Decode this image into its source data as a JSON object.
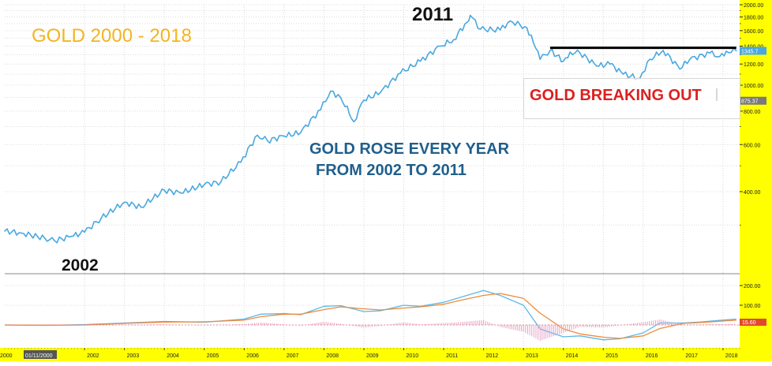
{
  "chart_data": [
    {
      "type": "line",
      "title": "GOLD 2000 - 2018",
      "y_scale": "log",
      "ylim": [
        200,
        2000
      ],
      "xlim": [
        "2000-01",
        "2018-06"
      ],
      "grid": true,
      "x_ticks": [
        "2000",
        "01/11/2000",
        "2002",
        "2003",
        "2004",
        "2005",
        "2006",
        "2007",
        "2008",
        "2009",
        "2010",
        "2011",
        "2012",
        "2013",
        "2014",
        "2015",
        "2016",
        "2017",
        "2018"
      ],
      "y_ticks": [
        400,
        600,
        800,
        1000,
        1200,
        1400,
        1600,
        1800,
        2000
      ],
      "y_tick_labels": [
        "400.00",
        "600.00",
        "800.00",
        "1000.00",
        "1200.00",
        "1400.00",
        "1600.00",
        "1800.00",
        "2000.00"
      ],
      "current_value_label": "1345.7",
      "secondary_value_label": "875.37",
      "line_color": "#4aa8df",
      "axis_color": "#ffff00",
      "x": [
        "2000-01",
        "2000-06",
        "2001-01",
        "2001-04",
        "2001-09",
        "2002-01",
        "2002-06",
        "2003-01",
        "2003-06",
        "2004-01",
        "2004-06",
        "2005-01",
        "2005-06",
        "2005-12",
        "2006-05",
        "2006-08",
        "2007-01",
        "2007-06",
        "2007-12",
        "2008-03",
        "2008-06",
        "2008-10",
        "2009-01",
        "2009-06",
        "2009-12",
        "2010-06",
        "2010-12",
        "2011-04",
        "2011-08",
        "2011-09",
        "2011-12",
        "2012-06",
        "2012-09",
        "2012-12",
        "2013-02",
        "2013-04",
        "2013-06",
        "2013-09",
        "2014-01",
        "2014-03",
        "2014-06",
        "2014-11",
        "2015-03",
        "2015-07",
        "2015-12",
        "2016-03",
        "2016-07",
        "2016-12",
        "2017-03",
        "2017-09",
        "2017-12",
        "2018-02",
        "2018-05"
      ],
      "values": [
        285,
        280,
        268,
        262,
        272,
        282,
        318,
        365,
        350,
        405,
        395,
        425,
        435,
        515,
        650,
        620,
        645,
        665,
        810,
        950,
        900,
        730,
        880,
        940,
        1110,
        1230,
        1400,
        1480,
        1720,
        1825,
        1620,
        1610,
        1740,
        1680,
        1640,
        1440,
        1250,
        1350,
        1230,
        1330,
        1320,
        1180,
        1200,
        1100,
        1060,
        1250,
        1350,
        1150,
        1250,
        1320,
        1280,
        1340,
        1345
      ],
      "annotations": [
        "2011",
        "2002",
        "GOLD ROSE EVERY YEAR",
        "FROM 2002 TO 2011",
        "GOLD BREAKING OUT"
      ],
      "resistance_line": {
        "from": "2013-09",
        "to": "2018-05",
        "value": 1380,
        "color": "#000000"
      }
    },
    {
      "type": "line",
      "indicator": "MACD",
      "y_ticks": [
        100,
        200
      ],
      "y_tick_labels": [
        "100.00",
        "200.00"
      ],
      "last_value_label": "15.60",
      "x": [
        "2000-01",
        "2001-01",
        "2002-01",
        "2003-01",
        "2004-01",
        "2005-01",
        "2006-01",
        "2006-06",
        "2007-01",
        "2007-06",
        "2008-01",
        "2008-06",
        "2009-01",
        "2009-06",
        "2010-01",
        "2010-06",
        "2011-01",
        "2011-06",
        "2012-01",
        "2012-06",
        "2013-01",
        "2013-06",
        "2014-01",
        "2014-06",
        "2015-01",
        "2015-06",
        "2016-01",
        "2016-06",
        "2017-01",
        "2017-06",
        "2018-01",
        "2018-05"
      ],
      "series": [
        {
          "name": "",
          "color": "#5ab8e8",
          "values": [
            0,
            -2,
            2,
            10,
            18,
            14,
            30,
            55,
            58,
            52,
            95,
            98,
            68,
            72,
            100,
            95,
            115,
            140,
            175,
            150,
            100,
            -20,
            -60,
            -55,
            -75,
            -70,
            -40,
            10,
            10,
            15,
            25,
            30
          ]
        },
        {
          "name": "",
          "color": "#ef8b3a",
          "values": [
            0,
            -1,
            0,
            8,
            15,
            16,
            25,
            42,
            55,
            55,
            78,
            92,
            82,
            76,
            86,
            92,
            105,
            125,
            150,
            160,
            135,
            60,
            -20,
            -45,
            -62,
            -68,
            -55,
            -18,
            8,
            12,
            20,
            25
          ]
        },
        {
          "name": "",
          "color": "#e8a0c8",
          "type": "histogram",
          "values": [
            0,
            -1,
            2,
            2,
            3,
            -2,
            5,
            13,
            3,
            -3,
            17,
            6,
            -14,
            -4,
            14,
            3,
            10,
            15,
            25,
            -10,
            -35,
            -80,
            -40,
            -10,
            -13,
            -2,
            15,
            28,
            2,
            3,
            5,
            5
          ]
        }
      ]
    }
  ]
}
